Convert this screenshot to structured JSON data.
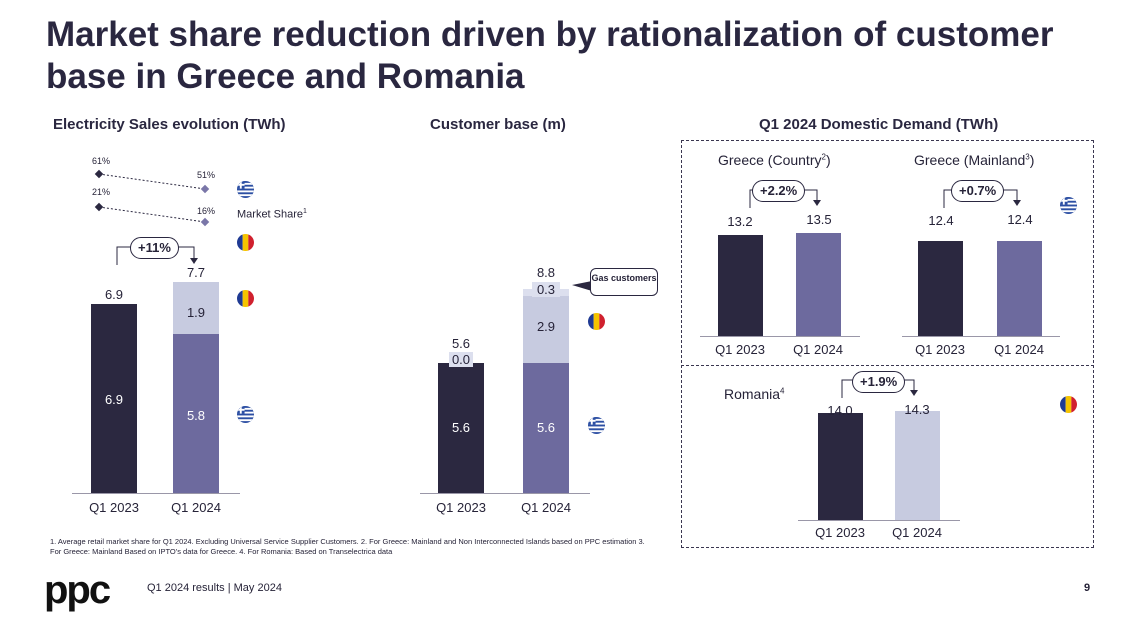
{
  "title": "Market share reduction driven by rationalization of customer base in Greece and Romania",
  "colors": {
    "dark": "#2b2840",
    "purple": "#6d6a9e",
    "light": "#c7cbe0"
  },
  "icons": {
    "greece": "greece-flag-icon",
    "romania": "romania-flag-icon"
  },
  "chart_data": [
    {
      "type": "bar",
      "title": "Electricity Sales evolution (TWh)",
      "categories": [
        "Q1 2023",
        "Q1 2024"
      ],
      "series": [
        {
          "name": "Greece",
          "values": [
            6.9,
            5.8
          ]
        },
        {
          "name": "Romania",
          "values": [
            0,
            1.9
          ]
        }
      ],
      "totals": [
        "6.9",
        "7.7"
      ],
      "segment_labels": {
        "greece": [
          "6.9",
          "5.8"
        ],
        "romania": [
          "1.9"
        ]
      },
      "growth": "+11%",
      "market_share": {
        "label": "Market Share",
        "sup": "1",
        "greece": {
          "values": [
            61,
            51
          ],
          "labels": [
            "61%",
            "51%"
          ]
        },
        "romania": {
          "values": [
            21,
            16
          ],
          "labels": [
            "21%",
            "16%"
          ]
        }
      }
    },
    {
      "type": "bar",
      "title": "Customer base (m)",
      "categories": [
        "Q1 2023",
        "Q1 2024"
      ],
      "series": [
        {
          "name": "Greece",
          "values": [
            5.6,
            5.6
          ]
        },
        {
          "name": "Romania",
          "values": [
            0,
            2.9
          ]
        },
        {
          "name": "Gas customers",
          "values": [
            0.0,
            0.3
          ]
        }
      ],
      "totals": [
        "5.6",
        "8.8"
      ],
      "segment_labels": {
        "greece": [
          "5.6",
          "5.6"
        ],
        "romania": [
          "2.9"
        ],
        "gas": [
          "0.0",
          "0.3"
        ]
      },
      "callout": "Gas customers"
    },
    {
      "type": "bar",
      "title": "Q1 2024 Domestic Demand (TWh)",
      "panels": [
        {
          "name": "Greece (Country)",
          "label": "Greece (Country",
          "sup": "2",
          "categories": [
            "Q1 2023",
            "Q1 2024"
          ],
          "values": [
            13.2,
            13.5
          ],
          "labels": [
            "13.2",
            "13.5"
          ],
          "growth": "+2.2%"
        },
        {
          "name": "Greece (Mainland)",
          "label": "Greece (Mainland",
          "sup": "3",
          "categories": [
            "Q1 2023",
            "Q1 2024"
          ],
          "values": [
            12.4,
            12.4
          ],
          "labels": [
            "12.4",
            "12.4"
          ],
          "growth": "+0.7%"
        },
        {
          "name": "Romania",
          "label": "Romania",
          "sup": "4",
          "categories": [
            "Q1 2023",
            "Q1 2024"
          ],
          "values": [
            14.0,
            14.3
          ],
          "labels": [
            "14.0",
            "14.3"
          ],
          "growth": "+1.9%"
        }
      ]
    }
  ],
  "footnote": "1.  Average retail market share for Q1 2024. Excluding Universal Service Supplier Customers. 2. For Greece: Mainland and Non Interconnected Islands based on PPC estimation   3. For Greece: Mainland Based on IPTO's data for Greece. 4. For Romania: Based on Transelectrica data",
  "footer": {
    "logo": "ppc",
    "text": "Q1 2024 results | May 2024",
    "page": "9"
  }
}
